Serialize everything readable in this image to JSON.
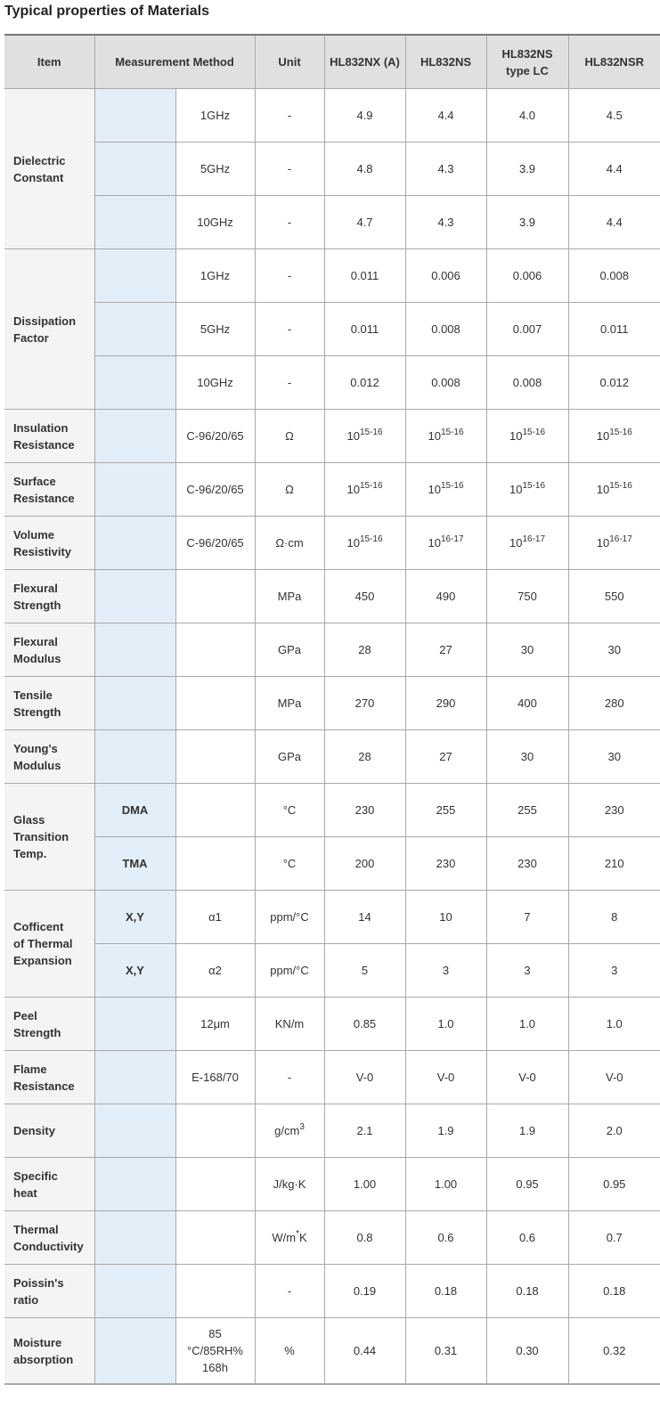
{
  "title": "Typical properties of Materials",
  "header": {
    "item": "Item",
    "method": "Measurement Method",
    "unit": "Unit",
    "products": [
      "HL832NX (A)",
      "HL832NS",
      "HL832NS type LC",
      "HL832NSR"
    ]
  },
  "colors": {
    "header_bg": "#e0e0e0",
    "item_bg": "#f4f4f4",
    "method_bg": "#e3eff8"
  },
  "rows": [
    {
      "item": "Dielectric Constant",
      "sub": [
        {
          "m1": "",
          "m2": "1GHz",
          "unit": "-",
          "values": [
            "4.9",
            "4.4",
            "4.0",
            "4.5"
          ]
        },
        {
          "m1": "",
          "m2": "5GHz",
          "unit": "-",
          "values": [
            "4.8",
            "4.3",
            "3.9",
            "4.4"
          ]
        },
        {
          "m1": "",
          "m2": "10GHz",
          "unit": "-",
          "values": [
            "4.7",
            "4.3",
            "3.9",
            "4.4"
          ]
        }
      ]
    },
    {
      "item": "Dissipation Factor",
      "sub": [
        {
          "m1": "",
          "m2": "1GHz",
          "unit": "-",
          "values": [
            "0.011",
            "0.006",
            "0.006",
            "0.008"
          ]
        },
        {
          "m1": "",
          "m2": "5GHz",
          "unit": "-",
          "values": [
            "0.011",
            "0.008",
            "0.007",
            "0.011"
          ]
        },
        {
          "m1": "",
          "m2": "10GHz",
          "unit": "-",
          "values": [
            "0.012",
            "0.008",
            "0.008",
            "0.012"
          ]
        }
      ]
    },
    {
      "item": "Insulation Resistance",
      "sub": [
        {
          "m1": "",
          "m2": "C-96/20/65",
          "unit": "Ω",
          "values": [
            {
              "base": "10",
              "exp": "15-16"
            },
            {
              "base": "10",
              "exp": "15-16"
            },
            {
              "base": "10",
              "exp": "15-16"
            },
            {
              "base": "10",
              "exp": "15-16"
            }
          ]
        }
      ]
    },
    {
      "item": "Surface Resistance",
      "sub": [
        {
          "m1": "",
          "m2": "C-96/20/65",
          "unit": "Ω",
          "values": [
            {
              "base": "10",
              "exp": "15-16"
            },
            {
              "base": "10",
              "exp": "15-16"
            },
            {
              "base": "10",
              "exp": "15-16"
            },
            {
              "base": "10",
              "exp": "15-16"
            }
          ]
        }
      ]
    },
    {
      "item": "Volume Resistivity",
      "sub": [
        {
          "m1": "",
          "m2": "C-96/20/65",
          "unit": "Ω·cm",
          "values": [
            {
              "base": "10",
              "exp": "15-16"
            },
            {
              "base": "10",
              "exp": "16-17"
            },
            {
              "base": "10",
              "exp": "16-17"
            },
            {
              "base": "10",
              "exp": "16-17"
            }
          ]
        }
      ]
    },
    {
      "item": "Flexural Strength",
      "sub": [
        {
          "m1": "",
          "m2": "",
          "unit": "MPa",
          "values": [
            "450",
            "490",
            "750",
            "550"
          ]
        }
      ]
    },
    {
      "item": "Flexural Modulus",
      "sub": [
        {
          "m1": "",
          "m2": "",
          "unit": "GPa",
          "values": [
            "28",
            "27",
            "30",
            "30"
          ]
        }
      ]
    },
    {
      "item": "Tensile Strength",
      "sub": [
        {
          "m1": "",
          "m2": "",
          "unit": "MPa",
          "values": [
            "270",
            "290",
            "400",
            "280"
          ]
        }
      ]
    },
    {
      "item": "Young's Modulus",
      "sub": [
        {
          "m1": "",
          "m2": "",
          "unit": "GPa",
          "values": [
            "28",
            "27",
            "30",
            "30"
          ]
        }
      ]
    },
    {
      "item": "Glass Transition Temp.",
      "sub": [
        {
          "m1": "DMA",
          "m2": "",
          "unit": "°C",
          "values": [
            "230",
            "255",
            "255",
            "230"
          ]
        },
        {
          "m1": "TMA",
          "m2": "",
          "unit": "°C",
          "values": [
            "200",
            "230",
            "230",
            "210"
          ]
        }
      ]
    },
    {
      "item": "Cofficent of Thermal Expansion",
      "sub": [
        {
          "m1": "X,Y",
          "m2": "α1",
          "unit": "ppm/°C",
          "values": [
            "14",
            "10",
            "7",
            "8"
          ]
        },
        {
          "m1": "X,Y",
          "m2": "α2",
          "unit": "ppm/°C",
          "values": [
            "5",
            "3",
            "3",
            "3"
          ]
        }
      ]
    },
    {
      "item": "Peel Strength",
      "sub": [
        {
          "m1": "",
          "m2": "12μm",
          "unit": "KN/m",
          "values": [
            "0.85",
            "1.0",
            "1.0",
            "1.0"
          ]
        }
      ]
    },
    {
      "item": "Flame Resistance",
      "sub": [
        {
          "m1": "",
          "m2": "E-168/70",
          "unit": "-",
          "values": [
            "V-0",
            "V-0",
            "V-0",
            "V-0"
          ]
        }
      ]
    },
    {
      "item": "Density",
      "sub": [
        {
          "m1": "",
          "m2": "",
          "unit": {
            "base": "g/cm",
            "exp": "3"
          },
          "values": [
            "2.1",
            "1.9",
            "1.9",
            "2.0"
          ]
        }
      ]
    },
    {
      "item": "Specific heat",
      "sub": [
        {
          "m1": "",
          "m2": "",
          "unit": "J/kg·K",
          "values": [
            "1.00",
            "1.00",
            "0.95",
            "0.95"
          ]
        }
      ]
    },
    {
      "item": "Thermal Conductivity",
      "sub": [
        {
          "m1": "",
          "m2": "",
          "unit": {
            "base": "W/m",
            "exp": "*",
            "tail": "K"
          },
          "values": [
            "0.8",
            "0.6",
            "0.6",
            "0.7"
          ]
        }
      ]
    },
    {
      "item": "Poissin's ratio",
      "sub": [
        {
          "m1": "",
          "m2": "",
          "unit": "-",
          "values": [
            "0.19",
            "0.18",
            "0.18",
            "0.18"
          ]
        }
      ]
    },
    {
      "item": "Moisture absorption",
      "sub": [
        {
          "m1": "",
          "m2": "85 °C/85RH% 168h",
          "unit": "%",
          "values": [
            "0.44",
            "0.31",
            "0.30",
            "0.32"
          ]
        }
      ]
    }
  ]
}
